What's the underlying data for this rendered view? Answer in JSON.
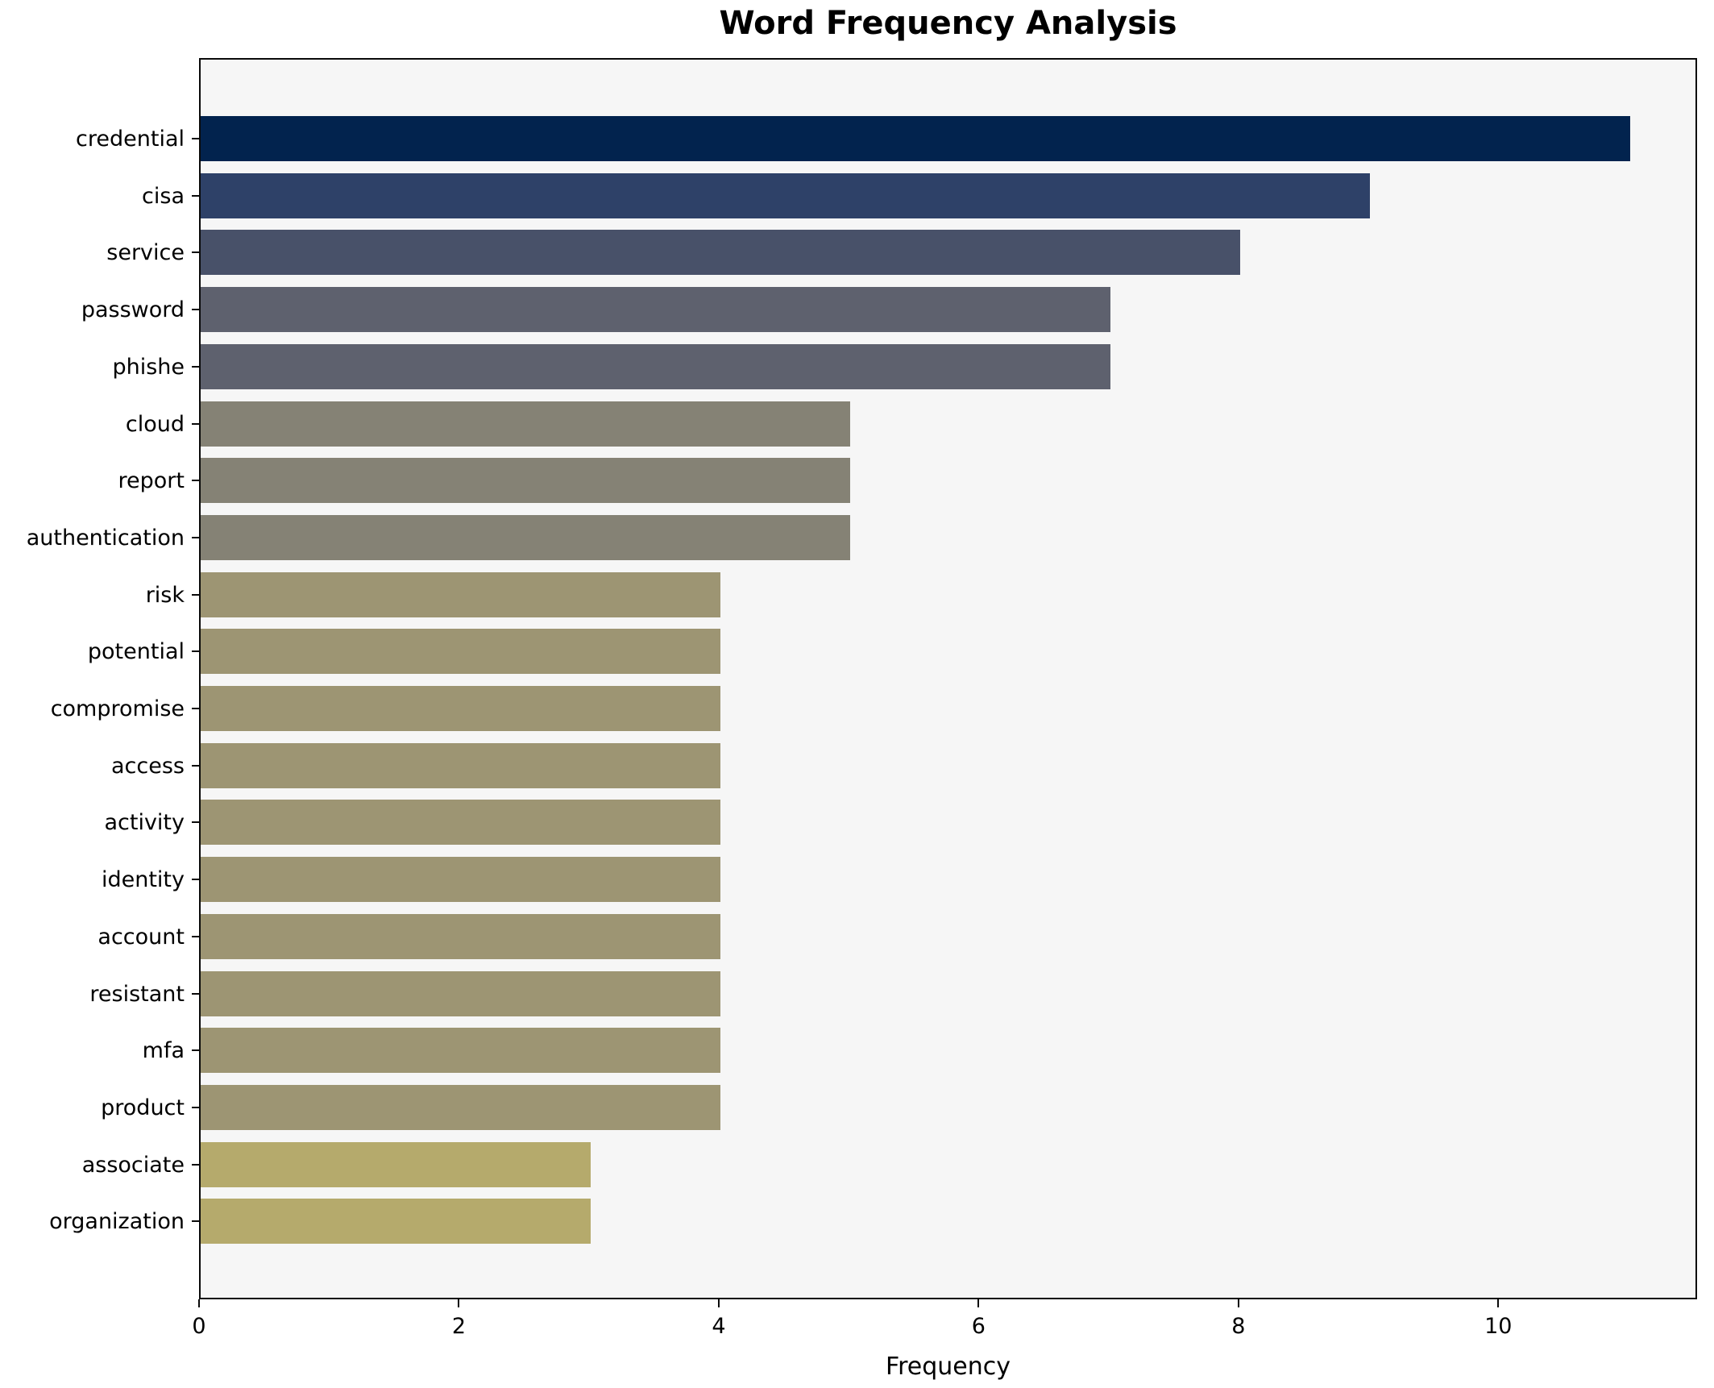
{
  "chart_data": {
    "type": "bar",
    "orientation": "horizontal",
    "title": "Word Frequency Analysis",
    "xlabel": "Frequency",
    "ylabel": "",
    "categories": [
      "credential",
      "cisa",
      "service",
      "password",
      "phishe",
      "cloud",
      "report",
      "authentication",
      "risk",
      "potential",
      "compromise",
      "access",
      "activity",
      "identity",
      "account",
      "resistant",
      "mfa",
      "product",
      "associate",
      "organization"
    ],
    "values": [
      11,
      9,
      8,
      7,
      7,
      5,
      5,
      5,
      4,
      4,
      4,
      4,
      4,
      4,
      4,
      4,
      4,
      4,
      3,
      3
    ],
    "bar_colors": [
      "#02234e",
      "#2e4168",
      "#485169",
      "#5e616e",
      "#5e616e",
      "#858275",
      "#858275",
      "#858275",
      "#9d9573",
      "#9d9573",
      "#9d9573",
      "#9d9573",
      "#9d9573",
      "#9d9573",
      "#9d9573",
      "#9d9573",
      "#9d9573",
      "#9d9573",
      "#b5aa6c",
      "#b5aa6c"
    ],
    "xticks": [
      0,
      2,
      4,
      6,
      8,
      10
    ],
    "xlim": [
      0,
      11.53
    ],
    "grid": false,
    "legend": "none",
    "plot_background": "#f6f6f6",
    "figure_background": "#ffffff",
    "spine_color": "#0a0a0a"
  }
}
